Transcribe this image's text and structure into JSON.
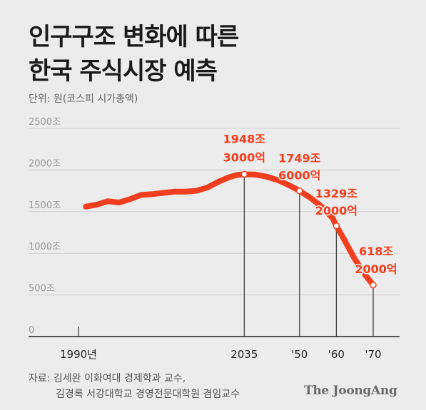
{
  "title": {
    "line1": "인구구조 변화에 따른",
    "line2": "한국 주식시장 예측"
  },
  "unit_label": "단위: 원(코스피 시가총액)",
  "source": {
    "line1": "자료: 김세완 이화여대 경제학과 교수,",
    "line2": "김경록 서강대학교 경영전문대학원 겸임교수"
  },
  "brand": "The JoongAng",
  "colors": {
    "line": "#f03e1e",
    "label": "#f03e1e",
    "axis_text": "#999999",
    "grid": "#cfcfcf"
  },
  "chart_data": {
    "type": "line",
    "title": "",
    "xlabel": "",
    "ylabel": "",
    "ylim": [
      0,
      2500
    ],
    "xlim": [
      1990,
      2073
    ],
    "y_ticks": [
      0,
      500,
      1000,
      1500,
      2000,
      2500
    ],
    "y_tick_labels": [
      "0",
      "500조",
      "1000조",
      "1500조",
      "2000조",
      "2500조"
    ],
    "x_ticks": [
      1990,
      2035,
      2050,
      2060,
      2070
    ],
    "x_tick_labels": [
      "1990년",
      "2035",
      "'50",
      "'60",
      "'70"
    ],
    "grid": true,
    "series": [
      {
        "x": [
          1992,
          1995,
          1998,
          2001,
          2004,
          2007,
          2010,
          2013,
          2016,
          2019,
          2022,
          2025,
          2028,
          2031,
          2033,
          2035,
          2038,
          2041,
          2044,
          2047,
          2050,
          2053,
          2056,
          2059,
          2060,
          2062,
          2065,
          2068,
          2070
        ],
        "values": [
          1560,
          1585,
          1625,
          1610,
          1650,
          1700,
          1710,
          1725,
          1740,
          1740,
          1750,
          1790,
          1860,
          1915,
          1940,
          1948,
          1945,
          1920,
          1880,
          1820,
          1749,
          1665,
          1560,
          1420,
          1329,
          1175,
          930,
          730,
          618
        ]
      }
    ],
    "annotations": [
      {
        "x": 2035,
        "value": 1948,
        "label_value": "1948조",
        "label_count": "3000억"
      },
      {
        "x": 2050,
        "value": 1749,
        "label_value": "1749조",
        "label_count": "6000억"
      },
      {
        "x": 2060,
        "value": 1329,
        "label_value": "1329조",
        "label_count": "2000억"
      },
      {
        "x": 2070,
        "value": 618,
        "label_value": "618조",
        "label_count": "2000억"
      }
    ],
    "vertical_markers": [
      1990,
      2035,
      2050,
      2060,
      2070
    ]
  }
}
